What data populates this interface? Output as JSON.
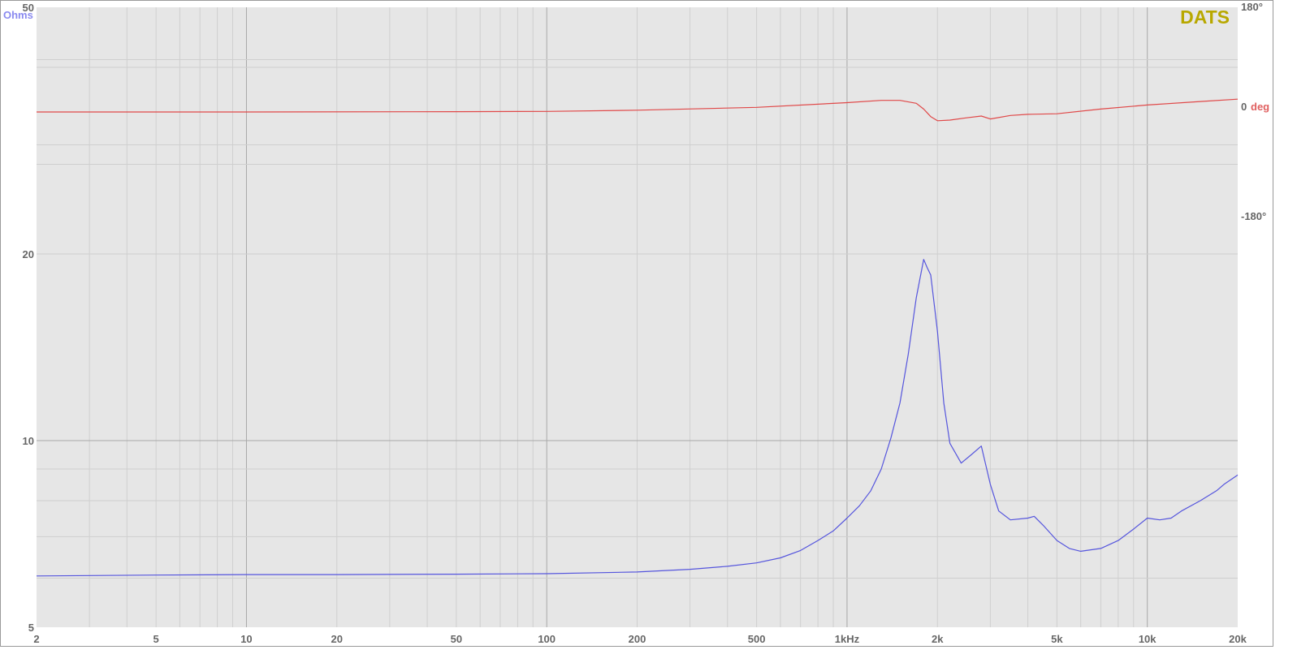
{
  "chart_data": {
    "type": "line",
    "brand": "DATS",
    "x_scale": "log",
    "xlim": [
      2,
      20000
    ],
    "x_ticks": [
      {
        "v": 2,
        "label": "2"
      },
      {
        "v": 5,
        "label": "5"
      },
      {
        "v": 10,
        "label": "10"
      },
      {
        "v": 20,
        "label": "20"
      },
      {
        "v": 50,
        "label": "50"
      },
      {
        "v": 100,
        "label": "100"
      },
      {
        "v": 200,
        "label": "200"
      },
      {
        "v": 500,
        "label": "500"
      },
      {
        "v": 1000,
        "label": "1kHz"
      },
      {
        "v": 2000,
        "label": "2k"
      },
      {
        "v": 5000,
        "label": "5k"
      },
      {
        "v": 10000,
        "label": "10k"
      },
      {
        "v": 20000,
        "label": "20k"
      }
    ],
    "y_left": {
      "label": "Ohms",
      "scale": "log",
      "ylim": [
        5,
        50
      ],
      "ticks": [
        {
          "v": 50,
          "label": "50"
        },
        {
          "v": 20,
          "label": "20"
        },
        {
          "v": 10,
          "label": "10"
        },
        {
          "v": 5,
          "label": "5"
        }
      ]
    },
    "y_right": {
      "label": "deg",
      "label_value": "0",
      "ylim": [
        -180,
        180
      ],
      "ticks": [
        {
          "v": 180,
          "label": "180°"
        },
        {
          "v": -180,
          "label": "-180°"
        }
      ]
    },
    "grid": true,
    "colors": {
      "background": "#e6e6e6",
      "grid_minor": "#cfcfcf",
      "grid_major": "#a8a8a8",
      "impedance": "#5555dd",
      "phase": "#e04848",
      "brand": "#b8a800",
      "tick_text": "#666666"
    },
    "series": [
      {
        "name": "Ohms",
        "axis": "left",
        "x": [
          2,
          5,
          10,
          20,
          50,
          100,
          200,
          300,
          400,
          500,
          600,
          700,
          800,
          900,
          1000,
          1100,
          1200,
          1300,
          1400,
          1500,
          1600,
          1700,
          1800,
          1850,
          1900,
          2000,
          2100,
          2200,
          2400,
          2600,
          2800,
          3000,
          3200,
          3500,
          4000,
          4200,
          4500,
          5000,
          5500,
          6000,
          7000,
          8000,
          9000,
          10000,
          11000,
          12000,
          13000,
          15000,
          17000,
          18000,
          20000
        ],
        "values": [
          6.05,
          6.07,
          6.08,
          6.08,
          6.09,
          6.1,
          6.14,
          6.2,
          6.27,
          6.35,
          6.47,
          6.65,
          6.9,
          7.15,
          7.5,
          7.85,
          8.3,
          9.0,
          10.1,
          11.5,
          13.8,
          17.0,
          19.6,
          19.0,
          18.5,
          15.0,
          11.5,
          9.9,
          9.2,
          9.5,
          9.8,
          8.5,
          7.7,
          7.45,
          7.5,
          7.55,
          7.3,
          6.9,
          6.7,
          6.63,
          6.7,
          6.9,
          7.2,
          7.5,
          7.45,
          7.5,
          7.7,
          8.0,
          8.3,
          8.5,
          8.8
        ]
      },
      {
        "name": "deg",
        "axis": "right",
        "x": [
          2,
          10,
          50,
          100,
          200,
          500,
          1000,
          1300,
          1500,
          1700,
          1800,
          1900,
          2000,
          2200,
          2500,
          2800,
          3000,
          3500,
          4000,
          5000,
          7000,
          10000,
          15000,
          20000
        ],
        "values": [
          0,
          0,
          0.5,
          1,
          3,
          8,
          16,
          20,
          20,
          15,
          5,
          -8,
          -15,
          -14,
          -10,
          -7,
          -12,
          -6,
          -4,
          -3,
          5,
          12,
          18,
          22
        ]
      }
    ]
  }
}
